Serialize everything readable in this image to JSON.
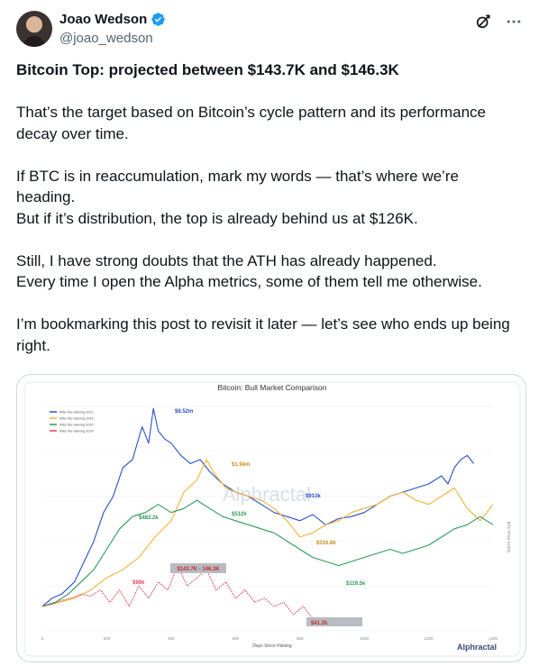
{
  "author": {
    "display_name": "Joao Wedson",
    "handle": "@joao_wedson"
  },
  "icons": {
    "verified": "verified-badge-icon",
    "grok": "grok-icon",
    "more": "more-options-icon"
  },
  "colors": {
    "verified": "#1d9bf0",
    "series_2012": "#2b4fc7",
    "series_2016": "#f2b338",
    "series_2020": "#2f9a5b",
    "series_2024": "#e0455a"
  },
  "tweet": {
    "headline": "Bitcoin Top: projected between $143.7K and $146.3K",
    "p1_l1": "That’s the target based on Bitcoin’s cycle pattern and its performance",
    "p1_l2": "decay over time.",
    "p2_l1": "If BTC is in reaccumulation, mark my words — that’s where we’re",
    "p2_l2": "heading.",
    "p2_l3": "But if it’s distribution, the top is already behind us at $126K.",
    "p3_l1": "Still, I have strong doubts that the ATH has already happened.",
    "p3_l2": "Every time I open the Alpha metrics, some of them tell me otherwise.",
    "p4_l1": "I’m bookmarking this post to revisit it later — let’s see who ends up being",
    "p4_l2": "right."
  },
  "chart_data": {
    "type": "line",
    "title": "Bitcoin: Bull Market Comparison",
    "xlabel": "Days Since Halving",
    "ylabel": "BTC Price (USD)",
    "watermark": "Alphractal",
    "brand": "Alphractal",
    "x_ticks": [
      "0",
      "200",
      "400",
      "600",
      "800",
      "1000",
      "1200",
      "1400"
    ],
    "xlim": [
      0,
      1400
    ],
    "legend_position": "top-left",
    "series": [
      {
        "name": "After the Halving 2012",
        "x": [
          0,
          30,
          60,
          100,
          130,
          160,
          190,
          220,
          250,
          280,
          310,
          330,
          345,
          360,
          380,
          400,
          430,
          460,
          490,
          520,
          560,
          600,
          640,
          680,
          720,
          760,
          800,
          840,
          880,
          920,
          960,
          1000,
          1040,
          1080,
          1120,
          1160,
          1200,
          1240,
          1260,
          1280,
          1300,
          1320,
          1340
        ],
        "y": [
          0.02,
          0.06,
          0.08,
          0.14,
          0.24,
          0.34,
          0.48,
          0.56,
          0.7,
          0.74,
          0.9,
          0.82,
          0.99,
          0.88,
          0.84,
          0.82,
          0.76,
          0.72,
          0.74,
          0.68,
          0.62,
          0.58,
          0.56,
          0.52,
          0.48,
          0.46,
          0.44,
          0.47,
          0.42,
          0.45,
          0.46,
          0.48,
          0.52,
          0.56,
          0.58,
          0.6,
          0.62,
          0.66,
          0.62,
          0.7,
          0.74,
          0.76,
          0.72
        ]
      },
      {
        "name": "After the Halving 2016",
        "x": [
          0,
          50,
          100,
          150,
          200,
          250,
          300,
          350,
          400,
          440,
          480,
          510,
          530,
          550,
          570,
          600,
          640,
          680,
          720,
          760,
          780,
          800,
          840,
          880,
          920,
          960,
          1000,
          1040,
          1080,
          1120,
          1160,
          1200,
          1240,
          1280,
          1320,
          1360,
          1380,
          1400
        ],
        "y": [
          0.02,
          0.04,
          0.06,
          0.1,
          0.16,
          0.2,
          0.26,
          0.36,
          0.44,
          0.58,
          0.64,
          0.74,
          0.68,
          0.64,
          0.6,
          0.58,
          0.56,
          0.54,
          0.5,
          0.44,
          0.4,
          0.36,
          0.38,
          0.42,
          0.44,
          0.48,
          0.5,
          0.52,
          0.56,
          0.58,
          0.54,
          0.52,
          0.56,
          0.6,
          0.5,
          0.44,
          0.48,
          0.52
        ]
      },
      {
        "name": "After the Halving 2020",
        "x": [
          0,
          40,
          80,
          120,
          160,
          200,
          240,
          280,
          320,
          360,
          400,
          440,
          480,
          520,
          560,
          600,
          640,
          680,
          720,
          760,
          800,
          840,
          880,
          920,
          960,
          1000,
          1040,
          1080,
          1120,
          1160,
          1200,
          1240,
          1280,
          1320,
          1360,
          1380,
          1400
        ],
        "y": [
          0.02,
          0.04,
          0.08,
          0.14,
          0.2,
          0.3,
          0.4,
          0.46,
          0.48,
          0.52,
          0.48,
          0.5,
          0.54,
          0.5,
          0.46,
          0.44,
          0.42,
          0.4,
          0.38,
          0.34,
          0.3,
          0.26,
          0.24,
          0.22,
          0.24,
          0.26,
          0.28,
          0.3,
          0.28,
          0.3,
          0.32,
          0.36,
          0.4,
          0.42,
          0.46,
          0.44,
          0.42
        ]
      },
      {
        "name": "After the Halving 2024",
        "x": [
          0,
          30,
          60,
          90,
          120,
          150,
          180,
          210,
          240,
          270,
          300,
          330,
          360,
          390,
          420,
          450,
          480,
          510,
          540,
          570,
          600,
          630,
          660,
          690,
          720,
          750,
          780,
          810,
          840,
          870
        ],
        "y": [
          0.02,
          0.03,
          0.05,
          0.06,
          0.08,
          0.07,
          0.1,
          0.04,
          0.1,
          0.02,
          0.12,
          0.06,
          0.14,
          0.1,
          0.22,
          0.12,
          0.16,
          0.2,
          0.1,
          0.14,
          0.06,
          0.1,
          0.04,
          0.06,
          0.02,
          0.04,
          -0.02,
          0.02,
          -0.04,
          -0.06
        ]
      }
    ],
    "annotations": [
      {
        "label": "$6.52m"
      },
      {
        "label": "$1.94m"
      },
      {
        "label": "$913k"
      },
      {
        "label": "$482.2k"
      },
      {
        "label": "$512k"
      },
      {
        "label": "$316.8k"
      },
      {
        "label": "$119.5k"
      },
      {
        "label": "$99k"
      },
      {
        "label": "$143.7K - 146.3K"
      },
      {
        "label": "$41.2k"
      }
    ]
  }
}
